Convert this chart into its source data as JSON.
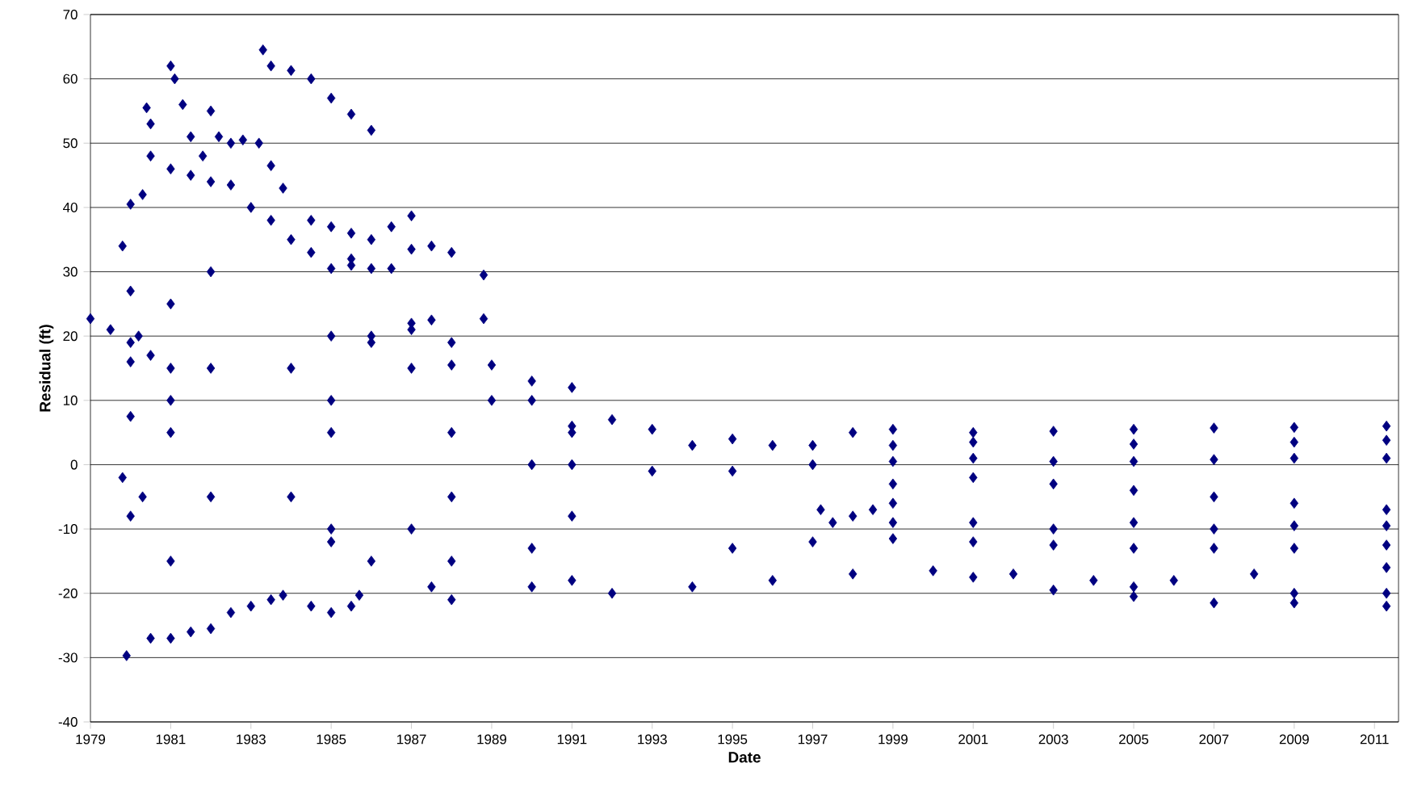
{
  "chart_data": {
    "type": "scatter",
    "xlabel": "Date",
    "ylabel": "Residual (ft)",
    "marker": "diamond",
    "grid": "y",
    "xlim": [
      1979,
      2011.6
    ],
    "ylim": [
      -40,
      70
    ],
    "xticks": [
      1979,
      1981,
      1983,
      1985,
      1987,
      1989,
      1991,
      1993,
      1995,
      1997,
      1999,
      2001,
      2003,
      2005,
      2007,
      2009,
      2011
    ],
    "yticks": [
      -40,
      -30,
      -20,
      -10,
      0,
      10,
      20,
      30,
      40,
      50,
      60,
      70
    ],
    "series": [
      {
        "color": "#000080",
        "x": [
          1983.3,
          1983.5,
          1984,
          1984.5,
          1985,
          1985.5,
          1986,
          1979,
          1979.5,
          1980,
          1980.5,
          1981,
          1979.9,
          1980.5,
          1981,
          1981.5,
          1982,
          1982.5,
          1983,
          1983.5,
          1983.8,
          1984.5,
          1985,
          1985.5,
          1985.7,
          1980.5,
          1981,
          1981.5,
          1982,
          1982.5,
          1983,
          1983.5,
          1984,
          1984.5,
          1985,
          1985.5,
          1986,
          1986.5,
          1987,
          1985.5,
          1986,
          1986.5,
          1987,
          1987.5,
          1988,
          1988.8,
          1986,
          1987,
          1987.5,
          1988.8,
          1988,
          1989,
          1990,
          1991,
          1992,
          1993,
          1995,
          1997,
          1998,
          1999,
          2001,
          2003,
          2005,
          2007,
          2009,
          2011.3,
          1994,
          1996,
          1999,
          2001,
          2005,
          2009,
          2011.3,
          1991,
          1993,
          1995,
          1997,
          1999,
          2001,
          2003,
          2005,
          2007,
          2009,
          2011.3,
          1999,
          2001,
          2003,
          2005,
          2007,
          2009,
          2011.3,
          1999,
          2001,
          2003,
          2005,
          2007,
          2009,
          2011.3,
          1995,
          1997,
          1999,
          2001,
          2003,
          2005,
          2007,
          2009,
          2011.3,
          1990,
          1992,
          1994,
          1996,
          1998,
          2000,
          2002,
          2004,
          2006,
          2008,
          2011.3,
          2001,
          2003,
          2005,
          2007,
          2009,
          2011.3,
          2005,
          2009,
          2011.3,
          1985,
          1986,
          1987.5,
          1988,
          1997.2,
          1997.5,
          1998,
          1998.5,
          1999,
          1979.8,
          1980,
          1980,
          1980.3,
          1980.4,
          1980.5,
          1981,
          1981.1,
          1981.3,
          1981.5,
          1981.8,
          1982,
          1982.2,
          1982.5,
          1982.8,
          1983.2,
          1983.5,
          1983.8,
          1984.5,
          1985,
          1985.5,
          1981,
          1980,
          1980.3,
          1979.8,
          1980,
          1980,
          1980.2,
          1982,
          1985,
          1987,
          1989,
          1991,
          1981,
          1985,
          1988,
          1990,
          1982,
          1985,
          1988,
          1991,
          1981,
          1984,
          1987,
          1990,
          1982,
          1985,
          1988,
          1991,
          1981,
          1984,
          1986,
          1987,
          1988,
          1990,
          1991
        ],
        "values": [
          64.5,
          62,
          61.3,
          60,
          57,
          54.5,
          52,
          22.7,
          21,
          19,
          17,
          15,
          -29.7,
          -27,
          -27,
          -26,
          -25.5,
          -23,
          -22,
          -21,
          -20.3,
          -22,
          -23,
          -22,
          -20.3,
          48,
          46,
          45,
          44,
          43.5,
          40,
          38,
          35,
          33,
          30.5,
          32,
          35,
          37,
          38.7,
          31,
          30.5,
          30.5,
          33.5,
          34,
          33,
          29.5,
          20,
          22,
          22.5,
          22.7,
          15.5,
          15.5,
          13,
          12,
          7,
          5.5,
          4,
          3,
          5,
          5.5,
          5,
          5.2,
          5.5,
          5.7,
          5.8,
          6,
          3,
          3,
          3,
          3.5,
          3.2,
          3.5,
          3.8,
          0,
          -1,
          -1,
          0,
          0.5,
          1,
          0.5,
          0.5,
          0.8,
          1,
          1,
          -3,
          -2,
          -3,
          -4,
          -5,
          -6,
          -7,
          -9,
          -9,
          -10,
          -9,
          -10,
          -9.5,
          -9.5,
          -13,
          -12,
          -11.5,
          -12,
          -12.5,
          -13,
          -13,
          -13,
          -12.5,
          -19,
          -20,
          -19,
          -18,
          -17,
          -16.5,
          -17,
          -18,
          -18,
          -17,
          -16,
          -17.5,
          -19.5,
          -20.5,
          -21.5,
          -21.5,
          -22,
          -19,
          -20,
          -20,
          -12,
          -15,
          -19,
          -21,
          -7,
          -9,
          -8,
          -7,
          -6,
          34,
          27,
          40.5,
          42,
          55.5,
          53,
          62,
          60,
          56,
          51,
          48,
          55,
          51,
          50,
          50.5,
          50,
          46.5,
          43,
          38,
          37,
          36,
          -15,
          -8,
          -5,
          -2,
          7.5,
          16,
          20,
          30,
          20,
          15,
          10,
          6,
          25,
          10,
          5,
          0,
          15,
          5,
          -5,
          -8,
          5,
          -5,
          -10,
          -13,
          -5,
          -10,
          -15,
          -18,
          10,
          15,
          19,
          21,
          19,
          10,
          5
        ]
      }
    ]
  }
}
